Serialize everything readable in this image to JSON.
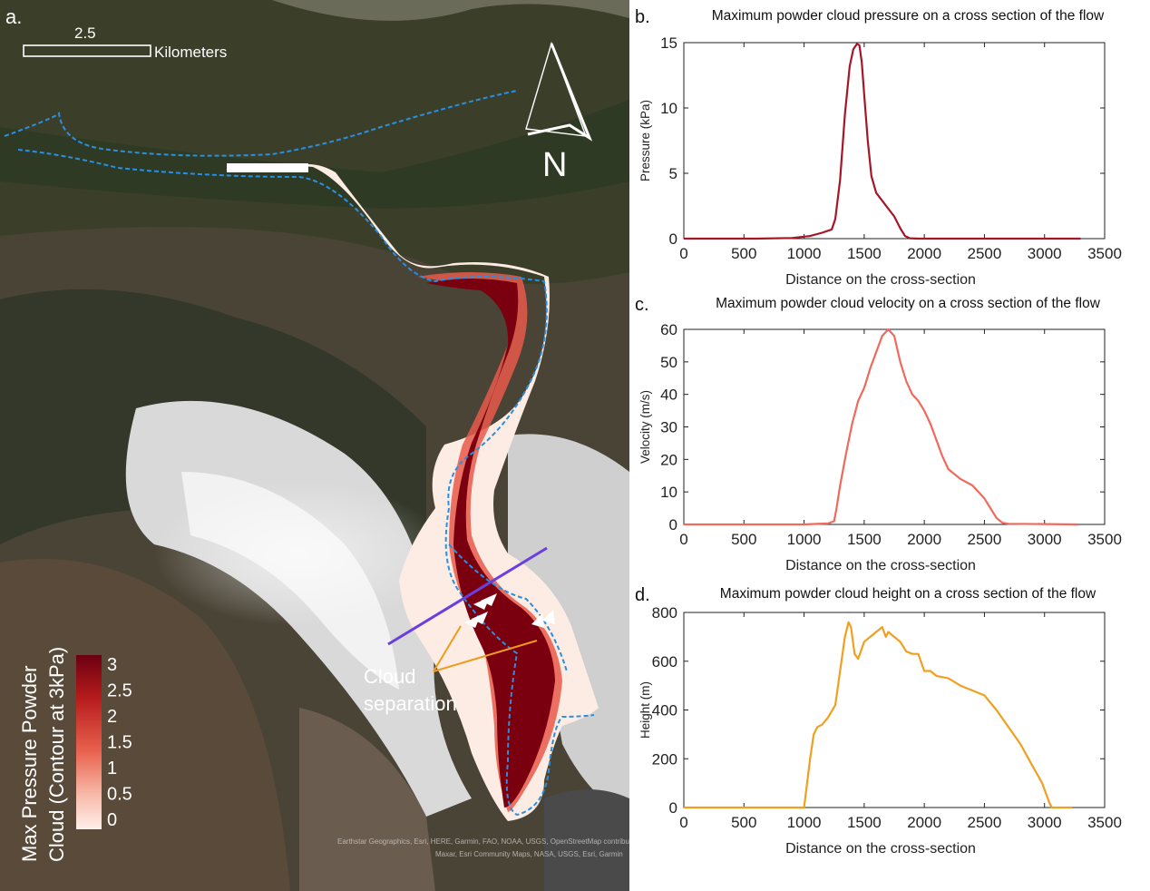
{
  "map": {
    "panel_label": "a.",
    "scalebar": {
      "value": "2.5",
      "unit": "Kilometers"
    },
    "north_label": "N",
    "annotation": "Cloud\nseparation",
    "colorbar": {
      "title_line1": "Max Pressure Powder",
      "title_line2": "Cloud (Contour at 3kPa)",
      "ticks": [
        "3",
        "2.5",
        "2",
        "1.5",
        "1",
        "0.5",
        "0"
      ]
    },
    "attribution_line1": "Earthstar Geographics, Esri, HERE, Garmin, FAO, NOAA, USGS, OpenStreetMap contributors",
    "attribution_line2": "Maxar, Esri Community Maps, NASA, USGS, Esri, Garmin"
  },
  "colors": {
    "pressure_line": "#a51727",
    "velocity_line": "#ef6a5c",
    "height_line": "#f0a020",
    "contour": "#2a8fe0",
    "section_line": "#6a3fe0",
    "annotation_line": "#ef9a1a"
  },
  "chart_data": [
    {
      "panel_label": "b.",
      "type": "line",
      "title": "Maximum powder cloud pressure on a cross section of the flow",
      "xlabel": "Distance on the cross-section",
      "ylabel": "Pressure (kPa)",
      "xlim": [
        0,
        3500
      ],
      "ylim": [
        0,
        15
      ],
      "xticks": [
        0,
        500,
        1000,
        1500,
        2000,
        2500,
        3000,
        3500
      ],
      "yticks": [
        0,
        5,
        10,
        15
      ],
      "grid": false,
      "series": [
        {
          "x": [
            0,
            600,
            900,
            1050,
            1150,
            1230,
            1260,
            1300,
            1340,
            1380,
            1410,
            1440,
            1460,
            1480,
            1500,
            1530,
            1560,
            1600,
            1650,
            1700,
            1750,
            1800,
            1840,
            1880,
            1950,
            3300
          ],
          "y": [
            0,
            0,
            0.05,
            0.2,
            0.45,
            0.7,
            1.5,
            4.5,
            9.5,
            13.2,
            14.5,
            14.9,
            14.8,
            13.5,
            11,
            7.5,
            4.8,
            3.5,
            2.9,
            2.3,
            1.7,
            0.8,
            0.2,
            0.03,
            0,
            0
          ]
        }
      ]
    },
    {
      "panel_label": "c.",
      "type": "line",
      "title": "Maximum powder cloud velocity on a cross section of the flow",
      "xlabel": "Distance on the cross-section",
      "ylabel": "Velocity (m/s)",
      "xlim": [
        0,
        3500
      ],
      "ylim": [
        0,
        60
      ],
      "xticks": [
        0,
        500,
        1000,
        1500,
        2000,
        2500,
        3000,
        3500
      ],
      "yticks": [
        0,
        10,
        20,
        30,
        40,
        50,
        60
      ],
      "grid": false,
      "series": [
        {
          "x": [
            0,
            1000,
            1200,
            1250,
            1270,
            1300,
            1350,
            1400,
            1450,
            1500,
            1550,
            1600,
            1650,
            1700,
            1750,
            1800,
            1850,
            1900,
            1950,
            2000,
            2050,
            2100,
            2150,
            2200,
            2300,
            2400,
            2500,
            2600,
            2650,
            2700,
            3000,
            3280
          ],
          "y": [
            0,
            0,
            0.3,
            1,
            5,
            12,
            22,
            31,
            38,
            42,
            48,
            53,
            58,
            60,
            58,
            50,
            44,
            40,
            38,
            35,
            31,
            26,
            21,
            17,
            14,
            12,
            8,
            2,
            0.5,
            0.2,
            0.1,
            0
          ]
        }
      ]
    },
    {
      "panel_label": "d.",
      "type": "line",
      "title": "Maximum powder cloud height on a cross section of the flow",
      "xlabel": "Distance on the cross-section",
      "ylabel": "Height (m)",
      "xlim": [
        0,
        3500
      ],
      "ylim": [
        0,
        800
      ],
      "xticks": [
        0,
        500,
        1000,
        1500,
        2000,
        2500,
        3000,
        3500
      ],
      "yticks": [
        0,
        200,
        400,
        600,
        800
      ],
      "grid": false,
      "series": [
        {
          "x": [
            0,
            1000,
            1050,
            1080,
            1110,
            1150,
            1200,
            1260,
            1300,
            1340,
            1370,
            1390,
            1420,
            1450,
            1500,
            1550,
            1600,
            1650,
            1680,
            1700,
            1750,
            1800,
            1850,
            1900,
            1950,
            2000,
            2050,
            2100,
            2200,
            2300,
            2400,
            2500,
            2600,
            2700,
            2800,
            2900,
            2980,
            3040,
            3060,
            3230
          ],
          "y": [
            0,
            0,
            200,
            300,
            330,
            340,
            370,
            420,
            560,
            700,
            760,
            740,
            630,
            610,
            680,
            700,
            720,
            740,
            700,
            720,
            700,
            680,
            640,
            630,
            630,
            560,
            560,
            540,
            530,
            500,
            480,
            460,
            400,
            330,
            260,
            170,
            100,
            20,
            0,
            0
          ]
        }
      ]
    }
  ]
}
